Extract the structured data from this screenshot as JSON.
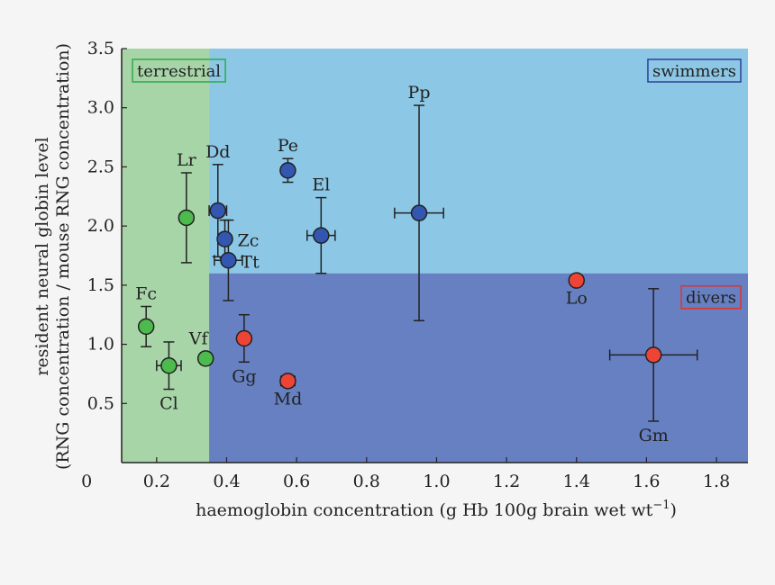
{
  "chart_data": {
    "type": "scatter",
    "xlabel_main": "haemoglobin concentration (g Hb 100g brain wet wt",
    "xlabel_sup": "−1",
    "xlabel_close": ")",
    "ylabel_line1": "resident neural globin level",
    "ylabel_line2": "(RNG concentration / mouse RNG concentration)",
    "xlim": [
      0.1,
      1.89
    ],
    "ylim": [
      0,
      3.5
    ],
    "x_ticks": [
      0,
      0.2,
      0.4,
      0.6,
      0.8,
      1.0,
      1.2,
      1.4,
      1.6,
      1.8
    ],
    "x_tick_labels": [
      "0",
      "0.2",
      "0.4",
      "0.6",
      "0.8",
      "1.0",
      "1.2",
      "1.4",
      "1.6",
      "1.8"
    ],
    "y_ticks": [
      0.5,
      1.0,
      1.5,
      2.0,
      2.5,
      3.0,
      3.5
    ],
    "y_tick_labels": [
      "0.5",
      "1.0",
      "1.5",
      "2.0",
      "2.5",
      "3.0",
      "3.5"
    ],
    "regions": [
      {
        "name": "terrestrial",
        "x": [
          0.1,
          0.35
        ],
        "y": [
          0,
          3.5
        ],
        "fill": "#a8d5a8",
        "label_color": "#2eaa4a"
      },
      {
        "name": "swimmers",
        "x": [
          0.35,
          1.89
        ],
        "y": [
          1.6,
          3.5
        ],
        "fill": "#8cc8e6",
        "label_color": "#2e3f9a"
      },
      {
        "name": "divers",
        "x": [
          0.35,
          1.89
        ],
        "y": [
          0,
          1.6
        ],
        "fill": "#6680c2",
        "label_color": "#e0342c"
      }
    ],
    "groups": {
      "terrestrial": {
        "color": "#4cba4c"
      },
      "swimmers": {
        "color": "#3356b0"
      },
      "divers": {
        "color": "#ee4436"
      }
    },
    "points": [
      {
        "label": "Fc",
        "group": "terrestrial",
        "x": 0.17,
        "y": 1.15,
        "xerr": 0.0,
        "yerr": 0.17,
        "label_pos": "above"
      },
      {
        "label": "Cl",
        "group": "terrestrial",
        "x": 0.235,
        "y": 0.82,
        "xerr": 0.035,
        "yerr": 0.2,
        "label_pos": "below"
      },
      {
        "label": "Lr",
        "group": "terrestrial",
        "x": 0.285,
        "y": 2.07,
        "xerr": 0.0,
        "yerr": 0.38,
        "label_pos": "above"
      },
      {
        "label": "Vf",
        "group": "terrestrial",
        "x": 0.34,
        "y": 0.88,
        "xerr": 0.015,
        "yerr": 0.05,
        "label_pos": "above-left"
      },
      {
        "label": "Dd",
        "group": "swimmers",
        "x": 0.375,
        "y": 2.13,
        "xerr": 0.025,
        "yerr": 0.39,
        "label_pos": "above"
      },
      {
        "label": "Zc",
        "group": "swimmers",
        "x": 0.395,
        "y": 1.89,
        "xerr": 0.015,
        "yerr": 0.16,
        "label_pos": "right"
      },
      {
        "label": "Tt",
        "group": "swimmers",
        "x": 0.405,
        "y": 1.71,
        "xerr": 0.04,
        "yerr": 0.34,
        "label_pos": "right"
      },
      {
        "label": "Pe",
        "group": "swimmers",
        "x": 0.575,
        "y": 2.47,
        "xerr": 0.015,
        "yerr": 0.1,
        "label_pos": "above"
      },
      {
        "label": "El",
        "group": "swimmers",
        "x": 0.67,
        "y": 1.92,
        "xerr": 0.04,
        "yerr": 0.32,
        "label_pos": "above"
      },
      {
        "label": "Pp",
        "group": "swimmers",
        "x": 0.95,
        "y": 2.11,
        "xerr": 0.07,
        "yerr": 0.91,
        "label_pos": "above"
      },
      {
        "label": "Gg",
        "group": "divers",
        "x": 0.45,
        "y": 1.05,
        "xerr": 0.015,
        "yerr": 0.2,
        "label_pos": "below"
      },
      {
        "label": "Md",
        "group": "divers",
        "x": 0.575,
        "y": 0.69,
        "xerr": 0.02,
        "yerr": 0.03,
        "label_pos": "below"
      },
      {
        "label": "Lo",
        "group": "divers",
        "x": 1.4,
        "y": 1.54,
        "xerr": 0.015,
        "yerr": 0.03,
        "label_pos": "below"
      },
      {
        "label": "Gm",
        "group": "divers",
        "x": 1.62,
        "y": 0.91,
        "xerr": 0.125,
        "yerr": 0.56,
        "label_pos": "below"
      }
    ]
  }
}
